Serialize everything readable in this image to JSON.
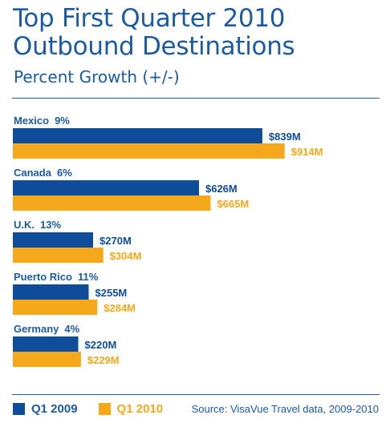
{
  "chart_data": {
    "type": "bar",
    "orientation": "horizontal",
    "title": "Top First Quarter 2010 Outbound Destinations",
    "title_lines": [
      "Top First Quarter 2010",
      "Outbound Destinations"
    ],
    "subtitle": "Percent Growth (+/-)",
    "categories": [
      "Mexico",
      "Canada",
      "U.K.",
      "Puerto Rico",
      "Germany"
    ],
    "growth_labels": [
      "9%",
      "6%",
      "13%",
      "11%",
      "4%"
    ],
    "series": [
      {
        "name": "Q1 2009",
        "color": "#0f4c9a",
        "values": [
          839,
          626,
          270,
          255,
          220
        ],
        "labels": [
          "$839M",
          "$626M",
          "$270M",
          "$255M",
          "$220M"
        ]
      },
      {
        "name": "Q1 2010",
        "color": "#f6a81c",
        "values": [
          914,
          665,
          304,
          284,
          229
        ],
        "labels": [
          "$914M",
          "$665M",
          "$304M",
          "$284M",
          "$229M"
        ]
      }
    ],
    "legend_position": "bottom-left",
    "grid": false
  },
  "source": "Source: VisaVue Travel data, 2009-2010"
}
